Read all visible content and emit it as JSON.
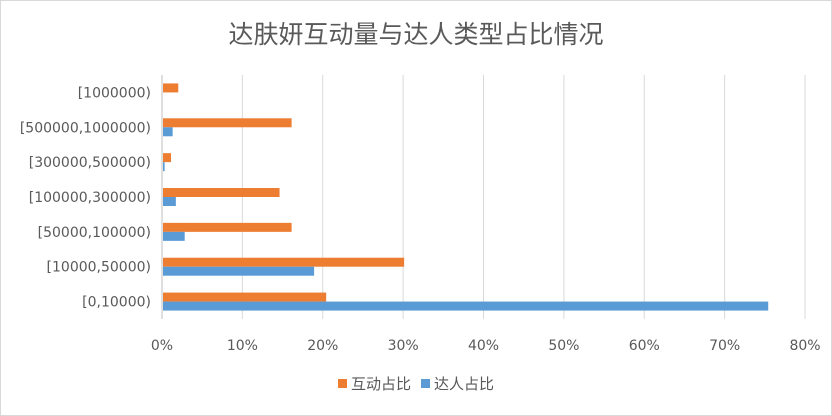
{
  "chart_data": {
    "type": "bar",
    "orientation": "horizontal",
    "title": "达肤妍互动量与达人类型占比情况",
    "categories": [
      "[0,10000)",
      "[10000,50000)",
      "[50000,100000)",
      "[100000,300000)",
      "[300000,500000)",
      "[500000,1000000)",
      "[1000000)"
    ],
    "series": [
      {
        "name": "互动占比",
        "color": "#ED7D31",
        "values": [
          20.3,
          30.0,
          16.0,
          14.5,
          1.0,
          16.0,
          1.9
        ]
      },
      {
        "name": "达人占比",
        "color": "#5B9BD5",
        "values": [
          75.3,
          18.8,
          2.7,
          1.6,
          0.2,
          1.2,
          0.0
        ]
      }
    ],
    "xlim": [
      0,
      80
    ],
    "xticks": [
      "0%",
      "10%",
      "20%",
      "30%",
      "40%",
      "50%",
      "60%",
      "70%",
      "80%"
    ],
    "grid": true,
    "legend_position": "bottom"
  }
}
